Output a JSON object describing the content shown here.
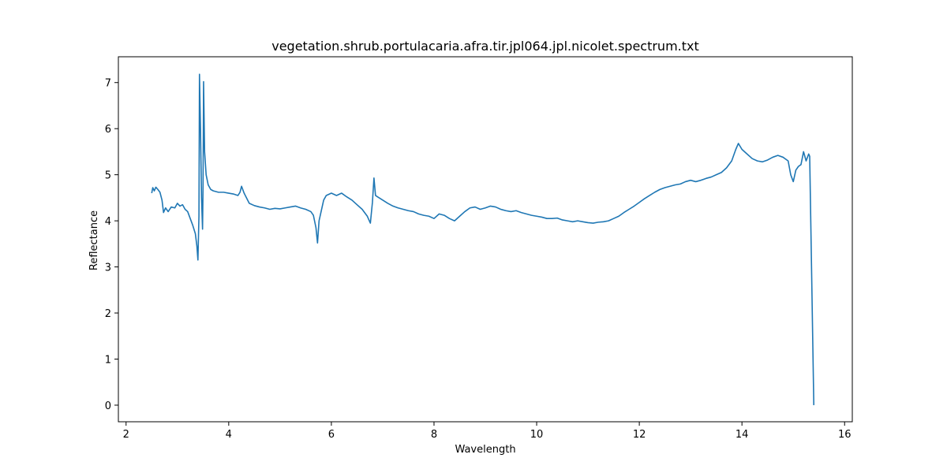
{
  "chart_data": {
    "type": "line",
    "title": "vegetation.shrub.portulacaria.afra.tir.jpl064.jpl.nicolet.spectrum.txt",
    "xlabel": "Wavelength",
    "ylabel": "Reflectance",
    "xlim": [
      1.85,
      16.15
    ],
    "ylim": [
      -0.36,
      7.56
    ],
    "xticks": [
      2,
      4,
      6,
      8,
      10,
      12,
      14,
      16
    ],
    "yticks": [
      0,
      1,
      2,
      3,
      4,
      5,
      6,
      7
    ],
    "grid": false,
    "series": [
      {
        "color": "#1f77b4",
        "points": [
          [
            2.5,
            4.6
          ],
          [
            2.52,
            4.72
          ],
          [
            2.55,
            4.65
          ],
          [
            2.58,
            4.73
          ],
          [
            2.62,
            4.68
          ],
          [
            2.66,
            4.62
          ],
          [
            2.7,
            4.45
          ],
          [
            2.73,
            4.18
          ],
          [
            2.77,
            4.28
          ],
          [
            2.82,
            4.2
          ],
          [
            2.88,
            4.3
          ],
          [
            2.95,
            4.28
          ],
          [
            3.0,
            4.38
          ],
          [
            3.05,
            4.32
          ],
          [
            3.1,
            4.35
          ],
          [
            3.15,
            4.25
          ],
          [
            3.2,
            4.2
          ],
          [
            3.25,
            4.05
          ],
          [
            3.3,
            3.9
          ],
          [
            3.35,
            3.72
          ],
          [
            3.38,
            3.45
          ],
          [
            3.4,
            3.15
          ],
          [
            3.42,
            4.1
          ],
          [
            3.43,
            7.18
          ],
          [
            3.45,
            6.0
          ],
          [
            3.47,
            4.5
          ],
          [
            3.49,
            3.82
          ],
          [
            3.5,
            4.8
          ],
          [
            3.51,
            7.02
          ],
          [
            3.53,
            5.5
          ],
          [
            3.56,
            5.0
          ],
          [
            3.6,
            4.78
          ],
          [
            3.65,
            4.68
          ],
          [
            3.7,
            4.65
          ],
          [
            3.8,
            4.62
          ],
          [
            3.9,
            4.62
          ],
          [
            4.0,
            4.6
          ],
          [
            4.1,
            4.58
          ],
          [
            4.18,
            4.55
          ],
          [
            4.22,
            4.62
          ],
          [
            4.25,
            4.75
          ],
          [
            4.3,
            4.6
          ],
          [
            4.4,
            4.38
          ],
          [
            4.5,
            4.33
          ],
          [
            4.6,
            4.3
          ],
          [
            4.7,
            4.28
          ],
          [
            4.8,
            4.25
          ],
          [
            4.9,
            4.27
          ],
          [
            5.0,
            4.26
          ],
          [
            5.1,
            4.28
          ],
          [
            5.2,
            4.3
          ],
          [
            5.3,
            4.32
          ],
          [
            5.4,
            4.28
          ],
          [
            5.5,
            4.25
          ],
          [
            5.6,
            4.2
          ],
          [
            5.65,
            4.12
          ],
          [
            5.7,
            3.85
          ],
          [
            5.73,
            3.52
          ],
          [
            5.76,
            4.0
          ],
          [
            5.8,
            4.2
          ],
          [
            5.85,
            4.45
          ],
          [
            5.9,
            4.55
          ],
          [
            6.0,
            4.6
          ],
          [
            6.1,
            4.55
          ],
          [
            6.2,
            4.6
          ],
          [
            6.3,
            4.52
          ],
          [
            6.4,
            4.45
          ],
          [
            6.5,
            4.35
          ],
          [
            6.6,
            4.25
          ],
          [
            6.7,
            4.1
          ],
          [
            6.76,
            3.95
          ],
          [
            6.8,
            4.4
          ],
          [
            6.83,
            4.93
          ],
          [
            6.86,
            4.55
          ],
          [
            6.9,
            4.52
          ],
          [
            7.0,
            4.45
          ],
          [
            7.1,
            4.38
          ],
          [
            7.2,
            4.32
          ],
          [
            7.3,
            4.28
          ],
          [
            7.4,
            4.25
          ],
          [
            7.5,
            4.22
          ],
          [
            7.6,
            4.2
          ],
          [
            7.7,
            4.15
          ],
          [
            7.8,
            4.12
          ],
          [
            7.9,
            4.1
          ],
          [
            8.0,
            4.05
          ],
          [
            8.1,
            4.15
          ],
          [
            8.2,
            4.12
          ],
          [
            8.3,
            4.05
          ],
          [
            8.4,
            4.0
          ],
          [
            8.5,
            4.1
          ],
          [
            8.6,
            4.2
          ],
          [
            8.7,
            4.28
          ],
          [
            8.8,
            4.3
          ],
          [
            8.9,
            4.25
          ],
          [
            9.0,
            4.28
          ],
          [
            9.1,
            4.32
          ],
          [
            9.2,
            4.3
          ],
          [
            9.3,
            4.25
          ],
          [
            9.4,
            4.22
          ],
          [
            9.5,
            4.2
          ],
          [
            9.6,
            4.22
          ],
          [
            9.7,
            4.18
          ],
          [
            9.8,
            4.15
          ],
          [
            9.9,
            4.12
          ],
          [
            10.0,
            4.1
          ],
          [
            10.1,
            4.08
          ],
          [
            10.2,
            4.05
          ],
          [
            10.3,
            4.05
          ],
          [
            10.4,
            4.06
          ],
          [
            10.5,
            4.02
          ],
          [
            10.6,
            4.0
          ],
          [
            10.7,
            3.98
          ],
          [
            10.8,
            4.0
          ],
          [
            10.9,
            3.98
          ],
          [
            11.0,
            3.96
          ],
          [
            11.1,
            3.95
          ],
          [
            11.2,
            3.97
          ],
          [
            11.3,
            3.98
          ],
          [
            11.4,
            4.0
          ],
          [
            11.5,
            4.05
          ],
          [
            11.6,
            4.1
          ],
          [
            11.7,
            4.18
          ],
          [
            11.8,
            4.25
          ],
          [
            11.9,
            4.32
          ],
          [
            12.0,
            4.4
          ],
          [
            12.1,
            4.48
          ],
          [
            12.2,
            4.55
          ],
          [
            12.3,
            4.62
          ],
          [
            12.4,
            4.68
          ],
          [
            12.5,
            4.72
          ],
          [
            12.6,
            4.75
          ],
          [
            12.7,
            4.78
          ],
          [
            12.8,
            4.8
          ],
          [
            12.9,
            4.85
          ],
          [
            13.0,
            4.88
          ],
          [
            13.1,
            4.85
          ],
          [
            13.2,
            4.88
          ],
          [
            13.3,
            4.92
          ],
          [
            13.4,
            4.95
          ],
          [
            13.5,
            5.0
          ],
          [
            13.6,
            5.05
          ],
          [
            13.7,
            5.15
          ],
          [
            13.8,
            5.3
          ],
          [
            13.88,
            5.55
          ],
          [
            13.93,
            5.68
          ],
          [
            14.0,
            5.55
          ],
          [
            14.1,
            5.45
          ],
          [
            14.2,
            5.35
          ],
          [
            14.3,
            5.3
          ],
          [
            14.4,
            5.28
          ],
          [
            14.5,
            5.32
          ],
          [
            14.6,
            5.38
          ],
          [
            14.7,
            5.42
          ],
          [
            14.8,
            5.38
          ],
          [
            14.9,
            5.3
          ],
          [
            14.95,
            5.0
          ],
          [
            15.0,
            4.85
          ],
          [
            15.05,
            5.1
          ],
          [
            15.1,
            5.18
          ],
          [
            15.15,
            5.22
          ],
          [
            15.2,
            5.5
          ],
          [
            15.25,
            5.3
          ],
          [
            15.3,
            5.45
          ],
          [
            15.32,
            5.4
          ],
          [
            15.4,
            0.0
          ]
        ]
      }
    ]
  }
}
